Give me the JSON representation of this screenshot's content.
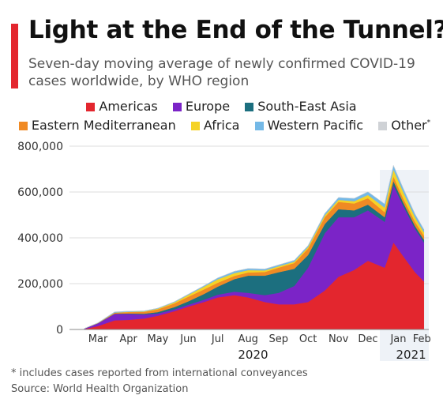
{
  "title": "Light at the End of the Tunnel?",
  "subtitle": "Seven-day moving average of newly confirmed COVID-19 cases worldwide, by WHO region",
  "footnote": "* includes cases reported from international conveyances",
  "source": "Source: World Health Organization",
  "accent_color": "#e3262e",
  "chart_data": {
    "type": "area",
    "stacked": true,
    "grid": true,
    "legend_position": "top",
    "ylim": [
      0,
      800000
    ],
    "yticks": [
      0,
      200000,
      400000,
      600000,
      800000
    ],
    "ytick_labels": [
      "0",
      "200,000",
      "400,000",
      "600,000",
      "800,000"
    ],
    "xtick_labels": [
      "Mar",
      "Apr",
      "May",
      "Jun",
      "Jul",
      "Aug",
      "Sep",
      "Oct",
      "Nov",
      "Dec",
      "Jan",
      "Feb"
    ],
    "year_labels": [
      "2020",
      "2021"
    ],
    "highlight_region": "Jan–Feb 2021",
    "x": [
      "2020-03-01",
      "2020-03-15",
      "2020-04-01",
      "2020-04-15",
      "2020-05-01",
      "2020-05-15",
      "2020-06-01",
      "2020-06-15",
      "2020-07-01",
      "2020-07-15",
      "2020-08-01",
      "2020-08-15",
      "2020-09-01",
      "2020-09-15",
      "2020-10-01",
      "2020-10-15",
      "2020-11-01",
      "2020-11-15",
      "2020-12-01",
      "2020-12-15",
      "2021-01-01",
      "2021-01-10",
      "2021-01-20",
      "2021-02-01",
      "2021-02-10"
    ],
    "series": [
      {
        "name": "Americas",
        "color": "#e3262e",
        "values": [
          2000,
          15000,
          40000,
          42000,
          48000,
          60000,
          80000,
          100000,
          120000,
          140000,
          150000,
          140000,
          120000,
          110000,
          110000,
          120000,
          170000,
          230000,
          260000,
          300000,
          270000,
          380000,
          320000,
          250000,
          210000
        ]
      },
      {
        "name": "Europe",
        "color": "#7b24c7",
        "values": [
          2000,
          12000,
          28000,
          26000,
          18000,
          10000,
          8000,
          8000,
          10000,
          12000,
          15000,
          20000,
          30000,
          50000,
          80000,
          150000,
          250000,
          260000,
          230000,
          220000,
          200000,
          250000,
          220000,
          190000,
          170000
        ]
      },
      {
        "name": "South-East Asia",
        "color": "#1c6f7f",
        "values": [
          0,
          200,
          1000,
          2000,
          3000,
          6000,
          10000,
          15000,
          25000,
          35000,
          55000,
          75000,
          85000,
          90000,
          75000,
          55000,
          40000,
          35000,
          30000,
          25000,
          20000,
          18000,
          14000,
          12000,
          12000
        ]
      },
      {
        "name": "Eastern Mediterranean",
        "color": "#f08a24",
        "values": [
          0,
          1000,
          4000,
          6000,
          8000,
          12000,
          16000,
          20000,
          20000,
          17000,
          14000,
          14000,
          16000,
          20000,
          25000,
          28000,
          30000,
          32000,
          30000,
          28000,
          22000,
          20000,
          18000,
          18000,
          18000
        ]
      },
      {
        "name": "Africa",
        "color": "#f5d327",
        "values": [
          0,
          200,
          800,
          1200,
          2000,
          3000,
          5000,
          8000,
          12000,
          15000,
          12000,
          10000,
          7000,
          6000,
          6000,
          7000,
          8000,
          9000,
          10000,
          14000,
          20000,
          30000,
          28000,
          20000,
          15000
        ]
      },
      {
        "name": "Western Pacific",
        "color": "#74b9e7",
        "values": [
          0,
          1000,
          3000,
          2500,
          2000,
          2000,
          2500,
          3000,
          4000,
          6000,
          8000,
          7000,
          6000,
          6000,
          6000,
          6000,
          8000,
          10000,
          12000,
          14000,
          16000,
          18000,
          16000,
          14000,
          12000
        ]
      },
      {
        "name": "Other",
        "legend_label": "Other",
        "legend_suffix": "*",
        "color": "#cfd2d6",
        "values": [
          0,
          0,
          0,
          0,
          0,
          0,
          0,
          0,
          0,
          0,
          0,
          0,
          0,
          0,
          0,
          0,
          0,
          0,
          0,
          0,
          0,
          0,
          0,
          0,
          0
        ]
      }
    ]
  }
}
